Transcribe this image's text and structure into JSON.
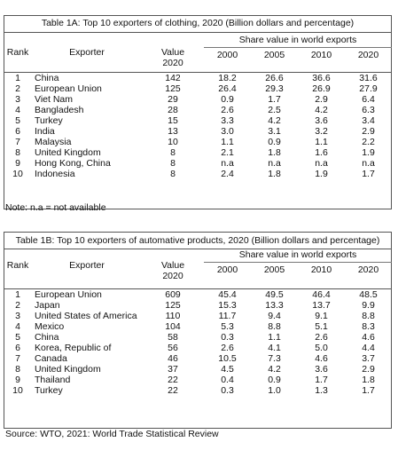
{
  "table_a": {
    "caption": "Table 1A: Top 10 exporters of clothing, 2020 (Billion dollars and percentage)",
    "header": {
      "rank": "Rank",
      "exporter": "Exporter",
      "value": "Value",
      "value_year": "2020",
      "share": "Share value in world exports",
      "years": [
        "2000",
        "2005",
        "2010",
        "2020"
      ]
    },
    "rows": [
      {
        "rank": "1",
        "exporter": "China",
        "value": "142",
        "y2000": "18.2",
        "y2005": "26.6",
        "y2010": "36.6",
        "y2020": "31.6"
      },
      {
        "rank": "2",
        "exporter": "European Union",
        "value": "125",
        "y2000": "26.4",
        "y2005": "29.3",
        "y2010": "26.9",
        "y2020": "27.9"
      },
      {
        "rank": "3",
        "exporter": "Viet Nam",
        "value": "29",
        "y2000": "0.9",
        "y2005": "1.7",
        "y2010": "2.9",
        "y2020": "6.4"
      },
      {
        "rank": "4",
        "exporter": "Bangladesh",
        "value": "28",
        "y2000": "2.6",
        "y2005": "2.5",
        "y2010": "4.2",
        "y2020": "6.3"
      },
      {
        "rank": "5",
        "exporter": "Turkey",
        "value": "15",
        "y2000": "3.3",
        "y2005": "4.2",
        "y2010": "3.6",
        "y2020": "3.4"
      },
      {
        "rank": "6",
        "exporter": "India",
        "value": "13",
        "y2000": "3.0",
        "y2005": "3.1",
        "y2010": "3.2",
        "y2020": "2.9"
      },
      {
        "rank": "7",
        "exporter": "Malaysia",
        "value": "10",
        "y2000": "1.1",
        "y2005": "0.9",
        "y2010": "1.1",
        "y2020": "2.2"
      },
      {
        "rank": "8",
        "exporter": "United Kingdom",
        "value": "8",
        "y2000": "2.1",
        "y2005": "1.8",
        "y2010": "1.6",
        "y2020": "1.9"
      },
      {
        "rank": "9",
        "exporter": "Hong Kong, China",
        "value": "8",
        "y2000": "n.a",
        "y2005": "n.a",
        "y2010": "n.a",
        "y2020": "n.a"
      },
      {
        "rank": "10",
        "exporter": "Indonesia",
        "value": "8",
        "y2000": "2.4",
        "y2005": "1.8",
        "y2010": "1.9",
        "y2020": "1.7"
      }
    ],
    "note": "Note: n.a  = not available"
  },
  "table_b": {
    "caption": "Table 1B: Top 10 exporters of automative products, 2020 (Billion dollars and percentage)",
    "header": {
      "rank": "Rank",
      "exporter": "Exporter",
      "value": "Value",
      "value_year": "2020",
      "share": "Share value in world exports",
      "years": [
        "2000",
        "2005",
        "2010",
        "2020"
      ]
    },
    "rows": [
      {
        "rank": "1",
        "exporter": "European Union",
        "value": "609",
        "y2000": "45.4",
        "y2005": "49.5",
        "y2010": "46.4",
        "y2020": "48.5"
      },
      {
        "rank": "2",
        "exporter": "Japan",
        "value": "125",
        "y2000": "15.3",
        "y2005": "13.3",
        "y2010": "13.7",
        "y2020": "9.9"
      },
      {
        "rank": "3",
        "exporter": "United States of America",
        "value": "110",
        "y2000": "11.7",
        "y2005": "9.4",
        "y2010": "9.1",
        "y2020": "8.8"
      },
      {
        "rank": "4",
        "exporter": "Mexico",
        "value": "104",
        "y2000": "5.3",
        "y2005": "8.8",
        "y2010": "5.1",
        "y2020": "8.3"
      },
      {
        "rank": "5",
        "exporter": "China",
        "value": "58",
        "y2000": "0.3",
        "y2005": "1.1",
        "y2010": "2.6",
        "y2020": "4.6"
      },
      {
        "rank": "6",
        "exporter": "Korea, Republic of",
        "value": "56",
        "y2000": "2.6",
        "y2005": "4.1",
        "y2010": "5.0",
        "y2020": "4.4"
      },
      {
        "rank": "7",
        "exporter": "Canada",
        "value": "46",
        "y2000": "10.5",
        "y2005": "7.3",
        "y2010": "4.6",
        "y2020": "3.7"
      },
      {
        "rank": "8",
        "exporter": "United Kingdom",
        "value": "37",
        "y2000": "4.5",
        "y2005": "4.2",
        "y2010": "3.6",
        "y2020": "2.9"
      },
      {
        "rank": "9",
        "exporter": "Thailand",
        "value": "22",
        "y2000": "0.4",
        "y2005": "0.9",
        "y2010": "1.7",
        "y2020": "1.8"
      },
      {
        "rank": "10",
        "exporter": "Turkey",
        "value": "22",
        "y2000": "0.3",
        "y2005": "1.0",
        "y2010": "1.3",
        "y2020": "1.7"
      }
    ]
  },
  "source": "Source: WTO, 2021: World Trade Statistical Review"
}
